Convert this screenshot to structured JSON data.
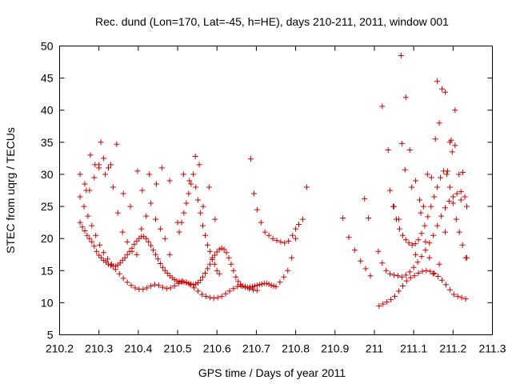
{
  "chart_data": {
    "type": "scatter",
    "title": "Rec. dund (Lon=170, Lat=-45, h=HE), days 210-211, 2011, window 001",
    "xlabel": "GPS time / Days of year 2011",
    "ylabel": "STEC from uqrg / TECUs",
    "xlim": [
      210.2,
      211.3
    ],
    "ylim": [
      5,
      50
    ],
    "xticks": [
      "210.2",
      "210.3",
      "210.4",
      "210.5",
      "210.6",
      "210.7",
      "210.8",
      "210.9",
      "211",
      "211.1",
      "211.2",
      "211.3"
    ],
    "yticks": [
      "5",
      "10",
      "15",
      "20",
      "25",
      "30",
      "35",
      "40",
      "45",
      "50"
    ],
    "grid": false,
    "marker": "plus",
    "marker_color": "#cc0000",
    "series": [
      {
        "x": [
          210.252,
          210.258,
          210.264,
          210.27,
          210.276,
          210.282,
          210.288,
          210.294,
          210.3,
          210.306,
          210.312,
          210.318,
          210.324,
          210.33,
          210.336,
          210.342,
          210.348,
          210.354,
          210.36,
          210.366,
          210.372,
          210.378,
          210.384,
          210.39,
          210.396,
          210.402,
          210.408,
          210.414,
          210.42,
          210.426,
          210.432,
          210.438,
          210.444,
          210.45,
          210.456,
          210.462,
          210.468,
          210.474,
          210.48,
          210.486,
          210.492,
          210.498,
          210.504,
          210.51,
          210.516,
          210.522,
          210.528,
          210.534,
          210.54,
          210.546,
          210.552,
          210.558,
          210.564,
          210.57,
          210.576,
          210.582,
          210.588,
          210.594,
          210.6,
          210.606,
          210.612,
          210.618,
          210.624,
          210.63,
          210.636,
          210.642,
          210.648,
          210.654,
          210.66,
          210.666,
          210.672,
          210.678,
          210.684,
          210.69,
          210.696,
          210.702,
          210.708,
          210.714,
          210.72,
          210.726,
          210.732,
          210.738,
          210.744,
          210.75
        ],
        "y": [
          22.5,
          21.8,
          21.2,
          20.5,
          20.0,
          19.5,
          18.8,
          18.0,
          17.4,
          17.0,
          16.6,
          16.3,
          16.0,
          15.8,
          15.7,
          15.7,
          15.9,
          16.2,
          16.6,
          17.0,
          17.5,
          18.0,
          18.5,
          19.1,
          19.6,
          20.0,
          20.3,
          20.3,
          20.0,
          19.5,
          18.9,
          18.2,
          17.5,
          16.8,
          16.1,
          15.5,
          15.0,
          14.6,
          14.2,
          13.9,
          13.6,
          13.4,
          13.3,
          13.2,
          13.2,
          13.1,
          13.0,
          12.9,
          12.8,
          12.9,
          13.1,
          13.5,
          14.0,
          14.6,
          15.3,
          16.0,
          16.7,
          17.4,
          17.9,
          18.3,
          18.5,
          18.3,
          17.8,
          17.0,
          16.0,
          15.0,
          14.0,
          13.3,
          12.8,
          12.6,
          12.5,
          12.4,
          12.4,
          12.5,
          12.6,
          12.7,
          12.8,
          12.9,
          13.0,
          13.0,
          12.9,
          12.7,
          12.6,
          12.5
        ]
      },
      {
        "x": [
          210.252,
          210.262,
          210.272,
          210.282,
          210.292,
          210.302,
          210.312,
          210.322,
          210.332,
          210.342,
          210.352,
          210.362,
          210.372,
          210.382,
          210.392,
          210.402,
          210.412,
          210.422,
          210.432,
          210.442,
          210.452,
          210.462,
          210.472,
          210.482,
          210.492,
          210.502,
          210.512,
          210.522,
          210.532,
          210.542,
          210.552,
          210.562,
          210.572,
          210.582,
          210.592,
          210.602,
          210.612,
          210.622,
          210.632,
          210.642,
          210.652,
          210.662,
          210.672,
          210.682,
          210.692,
          210.702
        ],
        "y": [
          26.5,
          25.0,
          23.5,
          22.0,
          20.5,
          19.0,
          17.8,
          16.8,
          16.0,
          15.2,
          14.5,
          13.8,
          13.2,
          12.7,
          12.3,
          12.1,
          12.1,
          12.3,
          12.6,
          12.8,
          12.7,
          12.4,
          12.2,
          12.3,
          12.6,
          13.0,
          13.4,
          13.2,
          12.8,
          12.3,
          11.8,
          11.3,
          11.0,
          10.8,
          10.7,
          10.8,
          11.0,
          11.4,
          11.8,
          12.2,
          12.5,
          12.6,
          12.4,
          12.2,
          12.0,
          11.9
        ]
      },
      {
        "x": [
          210.252,
          210.264,
          210.276,
          210.288,
          210.3,
          210.312,
          210.324,
          210.336,
          210.348,
          210.36,
          210.372,
          210.384,
          210.396,
          210.408,
          210.42,
          210.432,
          210.444,
          210.456,
          210.468,
          210.48
        ],
        "y": [
          30.0,
          28.5,
          27.5,
          29.5,
          31.5,
          32.5,
          31.0,
          28.0,
          24.0,
          21.0,
          19.5,
          18.0,
          17.5,
          21.5,
          23.5,
          25.5,
          23.0,
          21.5,
          20.0,
          17.5
        ]
      },
      {
        "x": [
          210.268,
          210.278,
          210.29,
          210.3,
          210.305,
          210.316,
          210.33,
          210.345,
          210.362,
          210.38,
          210.398,
          210.41,
          210.428,
          210.446,
          210.46,
          210.48,
          210.5,
          210.515,
          210.53,
          210.545,
          210.555,
          210.565,
          210.58,
          210.595
        ],
        "y": [
          27.5,
          33.0,
          31.5,
          31.0,
          35.0,
          30.0,
          31.5,
          34.7,
          27.0,
          25.0,
          30.5,
          27.5,
          30.0,
          28.5,
          31.0,
          29.0,
          22.5,
          30.0,
          29.0,
          32.8,
          31.5,
          25.0,
          28.0,
          23.0
        ]
      },
      {
        "x": [
          210.504,
          210.51,
          210.516,
          210.522,
          210.528,
          210.534,
          210.54,
          210.546,
          210.552,
          210.558,
          210.564,
          210.57,
          210.576,
          210.582,
          210.588,
          210.594,
          210.6,
          210.606
        ],
        "y": [
          21.0,
          22.5,
          24.0,
          25.5,
          27.0,
          28.5,
          30.0,
          28.0,
          26.0,
          24.0,
          22.0,
          20.5,
          19.0,
          18.0,
          17.0,
          16.0,
          15.0,
          14.5
        ]
      },
      {
        "x": [
          210.686,
          210.694,
          210.702,
          210.712,
          210.722,
          210.732,
          210.742,
          210.752,
          210.762,
          210.772,
          210.782,
          210.792,
          210.8,
          210.808,
          210.818,
          210.828
        ],
        "y": [
          32.4,
          27.0,
          24.5,
          22.5,
          21.0,
          20.5,
          20.0,
          19.7,
          19.5,
          19.3,
          19.6,
          20.5,
          21.5,
          22.2,
          23.0,
          28.0
        ]
      },
      {
        "x": [
          210.76,
          210.77,
          210.78,
          210.79,
          210.8
        ],
        "y": [
          13.2,
          14.0,
          15.0,
          17.0,
          20.0
        ]
      },
      {
        "x": [
          210.92,
          210.935,
          210.95,
          210.965,
          210.978,
          210.99
        ],
        "y": [
          23.2,
          20.2,
          18.2,
          16.5,
          15.3,
          14.2
        ]
      },
      {
        "x": [
          210.975,
          210.985
        ],
        "y": [
          26.2,
          23.2
        ]
      },
      {
        "x": [
          211.012,
          211.022,
          211.032,
          211.042,
          211.052,
          211.062,
          211.072,
          211.082,
          211.092,
          211.102,
          211.112,
          211.122,
          211.132,
          211.142,
          211.152,
          211.162,
          211.172,
          211.182,
          211.192,
          211.202,
          211.212,
          211.222,
          211.232
        ],
        "y": [
          9.5,
          9.8,
          10.1,
          10.5,
          11.0,
          11.8,
          12.6,
          13.4,
          13.9,
          14.2,
          14.6,
          14.9,
          15.0,
          14.9,
          14.6,
          14.1,
          13.5,
          12.8,
          12.0,
          11.3,
          11.0,
          10.8,
          10.6
        ]
      },
      {
        "x": [
          211.01,
          211.02,
          211.03,
          211.04,
          211.05,
          211.06,
          211.07,
          211.08,
          211.09,
          211.1,
          211.11,
          211.12,
          211.13,
          211.14,
          211.15,
          211.16,
          211.17,
          211.18,
          211.19,
          211.2,
          211.21,
          211.22,
          211.23
        ],
        "y": [
          18.0,
          16.2,
          15.0,
          14.5,
          14.3,
          14.2,
          14.0,
          14.3,
          14.8,
          15.5,
          16.3,
          17.2,
          18.2,
          19.3,
          20.5,
          22.0,
          23.5,
          24.8,
          25.8,
          26.5,
          27.0,
          27.3,
          26.5
        ]
      },
      {
        "x": [
          211.04,
          211.048,
          211.056,
          211.064,
          211.072,
          211.08,
          211.088,
          211.096,
          211.104,
          211.112,
          211.12,
          211.128,
          211.136,
          211.144,
          211.152,
          211.16,
          211.168,
          211.176,
          211.184,
          211.192,
          211.2,
          211.208,
          211.216,
          211.224,
          211.232
        ],
        "y": [
          27.5,
          25.0,
          23.0,
          21.5,
          20.5,
          19.8,
          19.3,
          19.0,
          19.2,
          19.8,
          20.8,
          22.0,
          23.4,
          25.0,
          26.5,
          28.0,
          29.5,
          30.5,
          30.0,
          28.0,
          25.5,
          23.0,
          21.0,
          19.0,
          17.0
        ]
      },
      {
        "x": [
          211.02,
          211.035,
          211.05,
          211.062,
          211.07,
          211.078,
          211.09,
          211.095,
          211.105,
          211.115,
          211.125,
          211.135,
          211.145,
          211.155,
          211.16,
          211.165,
          211.172,
          211.18,
          211.186,
          211.192,
          211.198,
          211.205,
          211.215,
          211.225,
          211.235
        ],
        "y": [
          40.6,
          33.8,
          25.0,
          23.0,
          34.8,
          30.7,
          33.8,
          28.0,
          29.0,
          26.0,
          25.0,
          30.0,
          29.5,
          35.5,
          44.5,
          38.0,
          43.3,
          42.8,
          30.5,
          35.0,
          33.5,
          40.0,
          30.0,
          30.3,
          25.0
        ]
      },
      {
        "x": [
          211.068,
          211.08,
          211.105,
          211.118,
          211.13,
          211.14,
          211.15,
          211.165,
          211.18,
          211.195,
          211.205,
          211.22,
          211.235
        ],
        "y": [
          48.5,
          42.0,
          17.5,
          24.0,
          19.5,
          17.0,
          14.5,
          16.0,
          21.0,
          35.3,
          34.5,
          26.0,
          17.0
        ]
      }
    ]
  }
}
